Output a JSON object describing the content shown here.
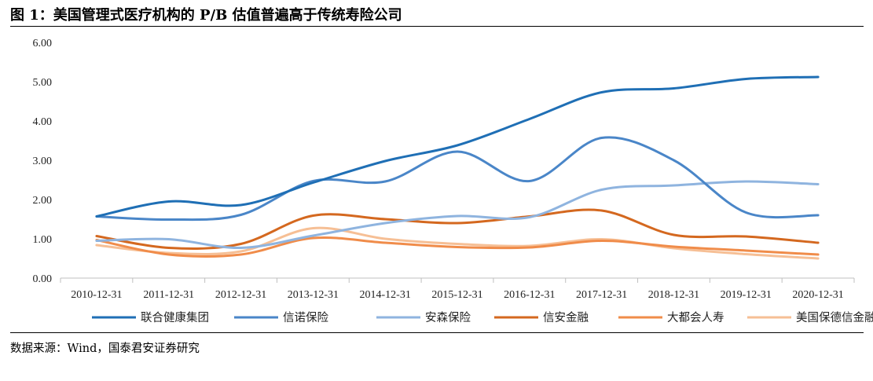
{
  "caption": {
    "title": "图 1：美国管理式医疗机构的 P/B 估值普遍高于传统寿险公司",
    "source": "数据来源：Wind，国泰君安证券研究"
  },
  "chart_data": {
    "type": "line",
    "title": "",
    "xlabel": "",
    "ylabel": "",
    "ylim": [
      0,
      6
    ],
    "yticks": [
      "0.00",
      "1.00",
      "2.00",
      "3.00",
      "4.00",
      "5.00",
      "6.00"
    ],
    "categories": [
      "2010-12-31",
      "2011-12-31",
      "2012-12-31",
      "2013-12-31",
      "2014-12-31",
      "2015-12-31",
      "2016-12-31",
      "2017-12-31",
      "2018-12-31",
      "2019-12-31",
      "2020-12-31"
    ],
    "grid": false,
    "legend_position": "bottom",
    "series": [
      {
        "name": "联合健康集团",
        "color": "#1f6fb5",
        "values": [
          1.57,
          1.95,
          1.86,
          2.43,
          2.98,
          3.38,
          4.05,
          4.73,
          4.83,
          5.07,
          5.12
        ]
      },
      {
        "name": "信诺保险",
        "color": "#4a86c8",
        "values": [
          1.57,
          1.49,
          1.61,
          2.47,
          2.46,
          3.22,
          2.47,
          3.57,
          3.0,
          1.67,
          1.6
        ]
      },
      {
        "name": "安森保险",
        "color": "#8fb4df",
        "values": [
          0.95,
          0.99,
          0.77,
          1.08,
          1.4,
          1.58,
          1.55,
          2.25,
          2.36,
          2.46,
          2.39
        ]
      },
      {
        "name": "信安金融",
        "color": "#d4681f",
        "values": [
          1.07,
          0.77,
          0.87,
          1.59,
          1.5,
          1.4,
          1.57,
          1.72,
          1.1,
          1.06,
          0.9
        ]
      },
      {
        "name": "大都会人寿",
        "color": "#f08c4a",
        "values": [
          0.97,
          0.6,
          0.6,
          1.02,
          0.9,
          0.79,
          0.78,
          0.95,
          0.8,
          0.7,
          0.6
        ]
      },
      {
        "name": "美国保德信金融",
        "color": "#f6bf95",
        "values": [
          0.84,
          0.64,
          0.68,
          1.27,
          1.0,
          0.87,
          0.82,
          0.99,
          0.76,
          0.61,
          0.5
        ]
      }
    ]
  }
}
